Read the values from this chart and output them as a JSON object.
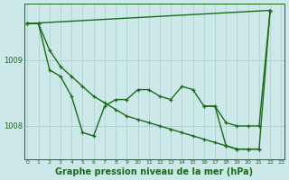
{
  "bg_color": "#cce8e8",
  "line_color": "#1a6b1a",
  "grid_color_v": "#aacfcf",
  "grid_color_h": "#aacfcf",
  "xlabel": "Graphe pression niveau de la mer (hPa)",
  "xlabel_fontsize": 7.0,
  "ytick_labels": [
    "1008",
    "1009"
  ],
  "ytick_values": [
    1008.0,
    1009.0
  ],
  "ylim": [
    1007.5,
    1009.85
  ],
  "xlim": [
    -0.3,
    23.3
  ],
  "xtick_labels": [
    "0",
    "1",
    "2",
    "3",
    "4",
    "5",
    "6",
    "7",
    "8",
    "9",
    "10",
    "11",
    "12",
    "13",
    "14",
    "15",
    "16",
    "17",
    "18",
    "19",
    "20",
    "21",
    "22",
    "23"
  ],
  "line1_x": [
    0,
    1,
    2,
    3,
    4,
    5,
    6,
    7,
    8,
    9,
    10,
    11,
    12,
    13,
    14,
    15,
    16,
    17,
    18,
    19,
    20,
    21,
    22
  ],
  "line1_y": [
    1009.55,
    1009.55,
    1008.85,
    1008.75,
    1008.45,
    1007.9,
    1007.85,
    1008.3,
    1008.4,
    1008.4,
    1008.55,
    1008.55,
    1008.45,
    1008.4,
    1008.6,
    1008.55,
    1008.3,
    1008.3,
    1008.05,
    1008.0,
    1008.0,
    1008.0,
    1009.75
  ],
  "line2_x": [
    0,
    22
  ],
  "line2_y": [
    1009.55,
    1009.75
  ],
  "line3_x": [
    0,
    1,
    2,
    3,
    4,
    5,
    6,
    7,
    8,
    9,
    10,
    11,
    12,
    13,
    14,
    15,
    16,
    17,
    18,
    19,
    20,
    21
  ],
  "line3_y": [
    1009.55,
    1009.55,
    1009.15,
    1008.9,
    1008.75,
    1008.6,
    1008.45,
    1008.35,
    1008.25,
    1008.15,
    1008.1,
    1008.05,
    1008.0,
    1007.95,
    1007.9,
    1007.85,
    1007.8,
    1007.75,
    1007.7,
    1007.65,
    1007.65,
    1007.65
  ],
  "line4_x": [
    16,
    17,
    18,
    19,
    20,
    21,
    22
  ],
  "line4_y": [
    1008.3,
    1008.3,
    1007.7,
    1007.65,
    1007.65,
    1007.65,
    1009.75
  ],
  "marker_size": 3.5,
  "line_width": 1.0
}
